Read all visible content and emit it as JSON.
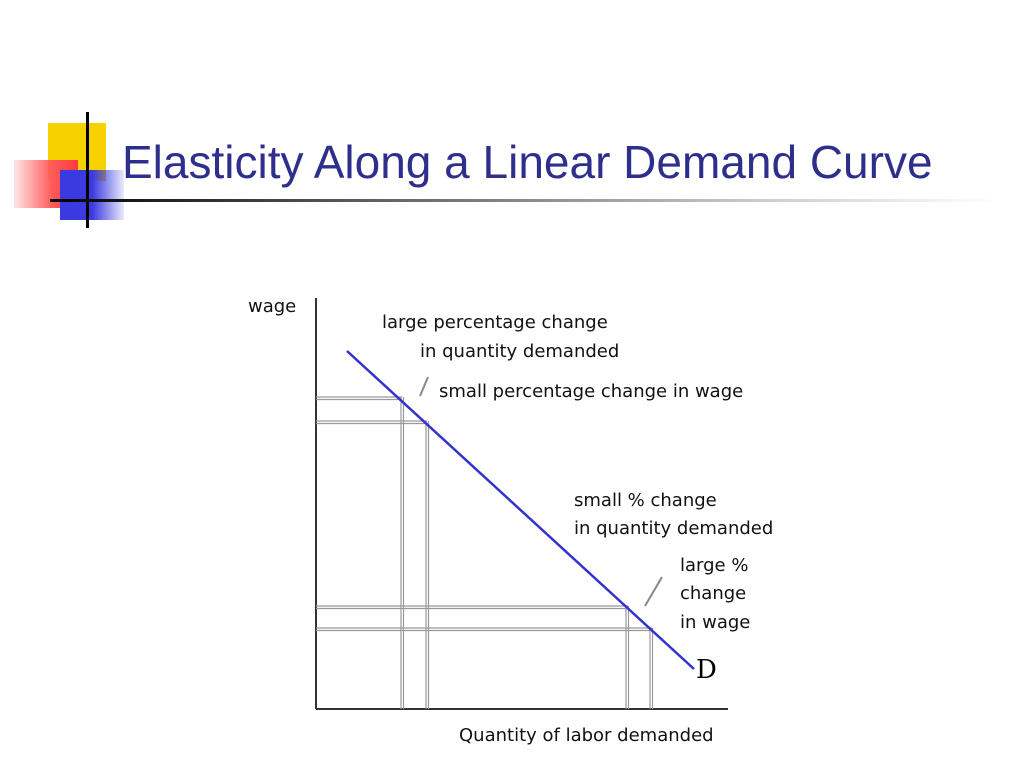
{
  "slide": {
    "title": "Elasticity Along a Linear Demand Curve"
  },
  "diagram": {
    "y_axis_label": "wage",
    "x_axis_label": "Quantity of labor demanded",
    "curve_label": "D",
    "annotation_top": {
      "line1": "large percentage change",
      "line2": "in quantity demanded",
      "line3": "small percentage change in wage"
    },
    "annotation_bottom": {
      "line1": "small % change",
      "line2": "in quantity demanded",
      "line3": "large %",
      "line4": "change",
      "line5": "in wage"
    }
  },
  "colors": {
    "title": "#2e2e8c",
    "curve": "#3333cc",
    "grid": "#999999",
    "axis": "#333333"
  }
}
